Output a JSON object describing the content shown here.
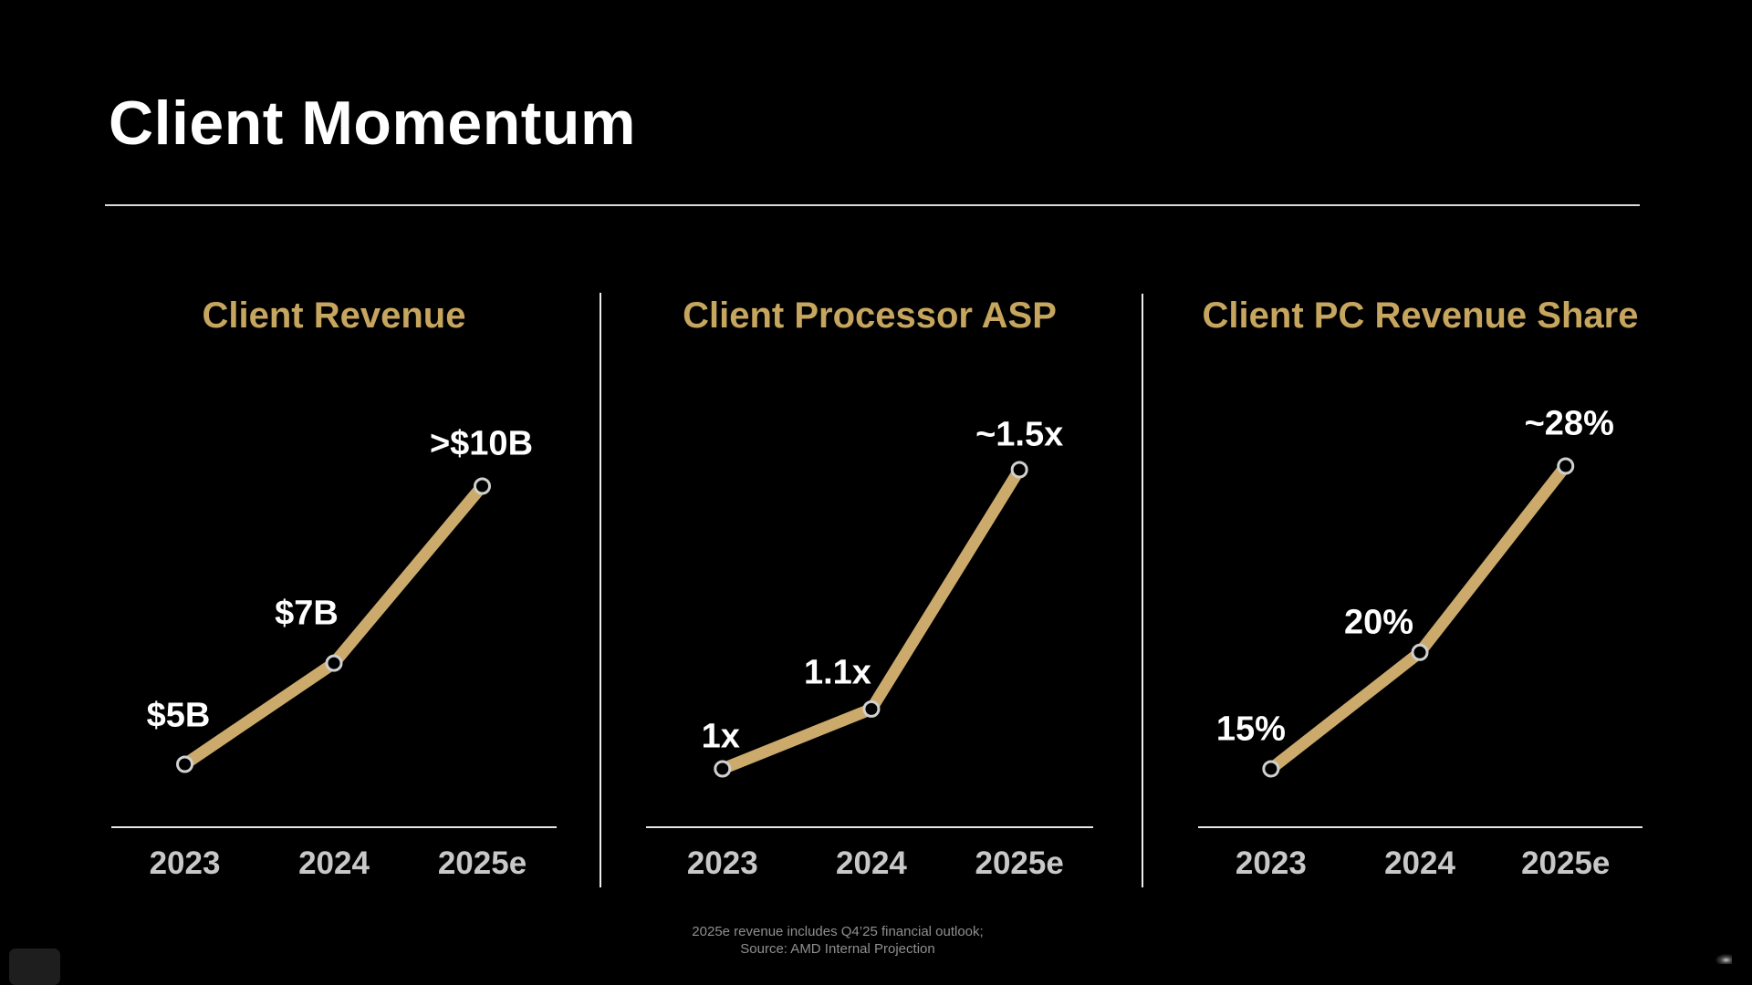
{
  "slide": {
    "title": "Client Momentum"
  },
  "colors": {
    "background": "#000000",
    "accent_gold_line": "#cbaa6c",
    "chart_title_gold": "#c6a55f",
    "axis_line": "#e6e6e6",
    "divider_line": "#ededed",
    "marker_stroke": "#d0d0d0",
    "marker_fill": "#000000",
    "data_label": "#ffffff",
    "tick_label": "#c8c8c8",
    "footer_text": "#8f8f8f"
  },
  "chart_data": [
    {
      "type": "line",
      "title": "Client Revenue",
      "categories": [
        "2023",
        "2024",
        "2025e"
      ],
      "values": [
        5,
        7,
        10.5
      ],
      "point_labels": [
        "$5B",
        "$7B",
        ">$10B"
      ],
      "unit": "USD billions",
      "legend": "none",
      "grid": "off"
    },
    {
      "type": "line",
      "title": "Client Processor ASP",
      "categories": [
        "2023",
        "2024",
        "2025e"
      ],
      "values": [
        1.0,
        1.1,
        1.5
      ],
      "point_labels": [
        "1x",
        "1.1x",
        "~1.5x"
      ],
      "unit": "multiple of 2023 ASP",
      "legend": "none",
      "grid": "off"
    },
    {
      "type": "line",
      "title": "Client PC Revenue Share",
      "categories": [
        "2023",
        "2024",
        "2025e"
      ],
      "values": [
        15,
        20,
        28
      ],
      "point_labels": [
        "15%",
        "20%",
        "~28%"
      ],
      "unit": "percent",
      "legend": "none",
      "grid": "off"
    }
  ],
  "footer": {
    "line1": "2025e revenue includes Q4’25 financial outlook;",
    "line2": "Source: AMD Internal Projection"
  }
}
